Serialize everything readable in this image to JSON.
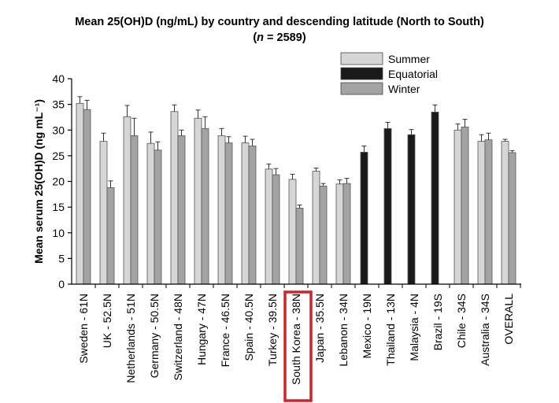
{
  "chart_data": {
    "type": "bar",
    "title": "Mean 25(OH)D (ng/mL) by country and descending latitude (North to South)",
    "subtitle": {
      "n_symbol": "n",
      "rest": " = 2589"
    },
    "ylabel": "Mean serum 25(OH)D (ng mL⁻¹)",
    "ylim": [
      0,
      40
    ],
    "yticks": [
      0,
      5,
      10,
      15,
      20,
      25,
      30,
      35,
      40
    ],
    "legend": {
      "placement": "top-right",
      "entries": [
        "Summer",
        "Equatorial",
        "Winter"
      ]
    },
    "colors": {
      "Summer": "#d6d6d6",
      "Equatorial": "#1a1a1a",
      "Winter": "#a3a3a3",
      "highlight": "#d42027"
    },
    "highlighted_category": "South Korea - 38N",
    "categories": [
      "Sweden - 61N",
      "UK - 52.5N",
      "Netherlands - 51N",
      "Germany - 50.5N",
      "Switzerland - 48N",
      "Hungary - 47N",
      "France - 46.5N",
      "Spain - 40.5N",
      "Turkey - 39.5N",
      "South Korea - 38N",
      "Japan - 35.5N",
      "Lebanon - 34N",
      "Mexico - 19N",
      "Thailand - 13N",
      "Malaysia - 4N",
      "Brazil - 19S",
      "Chile - 34S",
      "Australia - 34S",
      "OVERALL"
    ],
    "series": [
      {
        "name": "Summer",
        "values": [
          35.2,
          27.8,
          32.6,
          27.4,
          33.6,
          32.3,
          28.9,
          27.5,
          22.4,
          20.4,
          22.0,
          19.5,
          null,
          null,
          null,
          null,
          30.0,
          27.8,
          27.8
        ],
        "errors": [
          1.3,
          1.6,
          2.2,
          2.2,
          1.3,
          1.6,
          1.4,
          1.3,
          1.0,
          1.0,
          0.6,
          0.8,
          null,
          null,
          null,
          null,
          1.2,
          1.3,
          0.4
        ]
      },
      {
        "name": "Equatorial",
        "values": [
          null,
          null,
          null,
          null,
          null,
          null,
          null,
          null,
          null,
          null,
          null,
          null,
          25.7,
          30.3,
          29.1,
          33.5,
          null,
          null,
          null
        ],
        "errors": [
          null,
          null,
          null,
          null,
          null,
          null,
          null,
          null,
          null,
          null,
          null,
          null,
          1.2,
          1.2,
          1.0,
          1.4,
          null,
          null,
          null
        ]
      },
      {
        "name": "Winter",
        "values": [
          34.0,
          18.8,
          28.9,
          26.1,
          28.9,
          30.3,
          27.5,
          26.9,
          21.3,
          14.8,
          19.1,
          19.6,
          null,
          null,
          null,
          null,
          30.6,
          28.1,
          25.6
        ],
        "errors": [
          1.8,
          1.3,
          3.4,
          1.6,
          1.1,
          2.3,
          1.2,
          1.3,
          1.2,
          0.6,
          0.5,
          1.0,
          null,
          null,
          null,
          null,
          1.5,
          1.3,
          0.4
        ]
      }
    ]
  }
}
